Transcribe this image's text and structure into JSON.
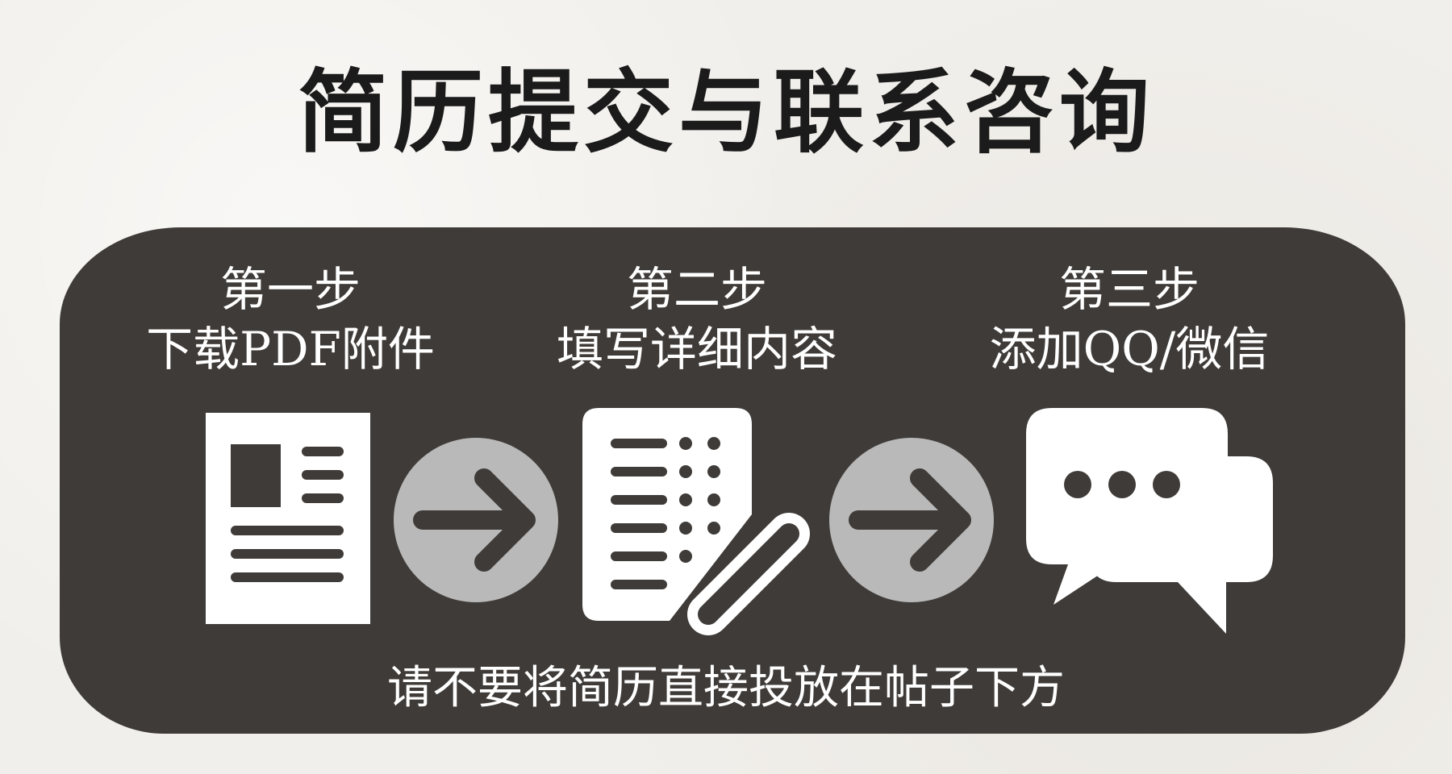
{
  "title": "简历提交与联系咨询",
  "steps": [
    {
      "label": "第一步",
      "desc": "下载PDF附件"
    },
    {
      "label": "第二步",
      "desc": "填写详细内容"
    },
    {
      "label": "第三步",
      "desc": "添加QQ/微信"
    }
  ],
  "footer_note": "请不要将简历直接投放在帖子下方",
  "icons": [
    "document-icon",
    "arrow-right-icon",
    "form-checklist-icon",
    "pen-icon",
    "arrow-right-icon",
    "chat-bubbles-icon"
  ],
  "colors": {
    "background": "#f1efeb",
    "panel": "#3f3b38",
    "icon_white": "#ffffff",
    "arrow_circle": "#b9b9b9",
    "title_text": "#1b1b1b"
  }
}
